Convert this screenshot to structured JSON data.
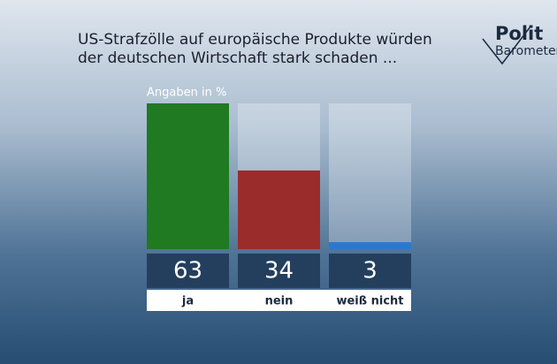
{
  "chart_data": {
    "type": "bar",
    "title": [
      "US-Strafzölle auf europäische Produkte würden",
      "der deutschen Wirtschaft stark schaden ..."
    ],
    "logo": [
      "Polit",
      "Barometer"
    ],
    "subtitle": "Angaben in %",
    "categories": [
      "ja",
      "nein",
      "weiß nicht"
    ],
    "values": [
      63,
      34,
      3
    ],
    "colors": [
      "#1f7a22",
      "#9b2c2c",
      "#2a78d2"
    ],
    "ylim": [
      0,
      63
    ]
  }
}
